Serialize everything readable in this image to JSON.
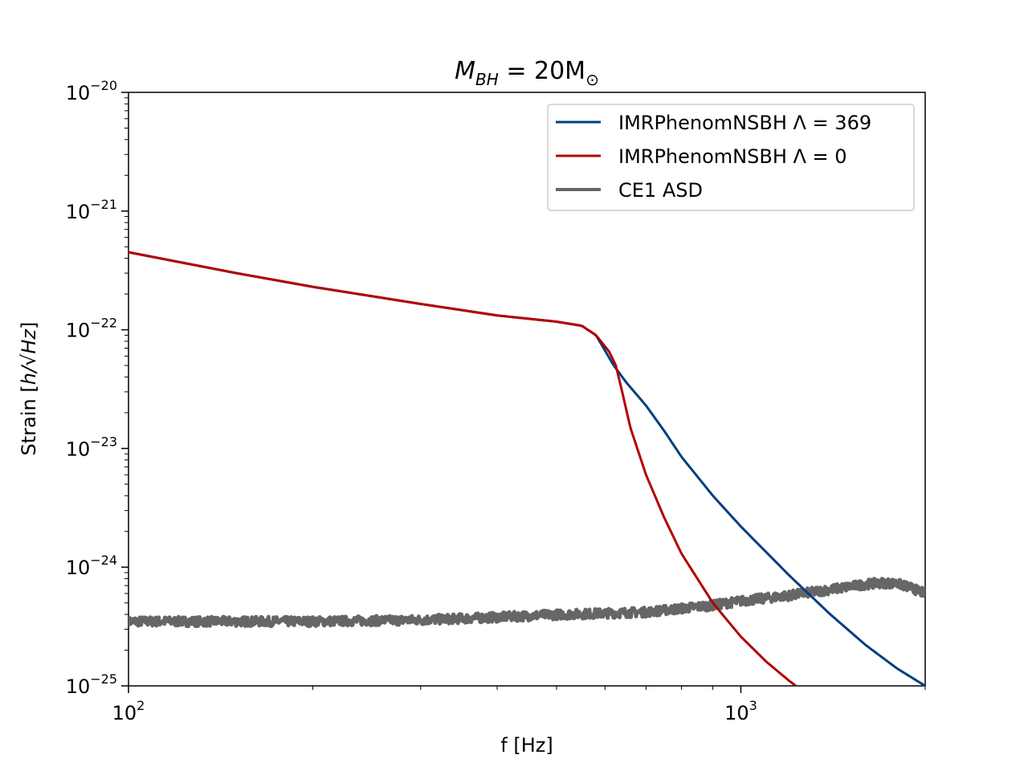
{
  "chart_data": {
    "type": "line",
    "title": "M_BH = 20M_⊙",
    "title_parts": {
      "main": "M",
      "sub": "BH",
      "mid": " = 20M",
      "sub2": "⊙"
    },
    "xlabel": "f [Hz]",
    "ylabel_prefix": "Strain  [",
    "ylabel_unit": "h/√Hz",
    "ylabel_suffix": "]",
    "xscale": "log",
    "yscale": "log",
    "xlim": [
      100,
      2000
    ],
    "ylim": [
      1e-25,
      1e-20
    ],
    "x_ticks": [
      {
        "value": 100,
        "base": "10",
        "exp": "2"
      },
      {
        "value": 1000,
        "base": "10",
        "exp": "3"
      }
    ],
    "y_ticks": [
      {
        "value": 1e-25,
        "base": "10",
        "exp": "−25"
      },
      {
        "value": 1e-24,
        "base": "10",
        "exp": "−24"
      },
      {
        "value": 1e-23,
        "base": "10",
        "exp": "−23"
      },
      {
        "value": 1e-22,
        "base": "10",
        "exp": "−22"
      },
      {
        "value": 1e-21,
        "base": "10",
        "exp": "−21"
      },
      {
        "value": 1e-20,
        "base": "10",
        "exp": "−20"
      }
    ],
    "grid": false,
    "legend_position": "top-right",
    "series": [
      {
        "name": "IMRPhenomNSBH Λ = 369",
        "color": "#003f7f",
        "points": [
          [
            100,
            4.5e-22
          ],
          [
            150,
            3e-22
          ],
          [
            200,
            2.3e-22
          ],
          [
            300,
            1.65e-22
          ],
          [
            400,
            1.32e-22
          ],
          [
            500,
            1.17e-22
          ],
          [
            550,
            1.08e-22
          ],
          [
            580,
            9e-23
          ],
          [
            620,
            5e-23
          ],
          [
            650,
            3.6e-23
          ],
          [
            700,
            2.3e-23
          ],
          [
            750,
            1.4e-23
          ],
          [
            800,
            8.5e-24
          ],
          [
            900,
            4e-24
          ],
          [
            1000,
            2.2e-24
          ],
          [
            1200,
            8.5e-25
          ],
          [
            1400,
            4e-25
          ],
          [
            1600,
            2.2e-25
          ],
          [
            1800,
            1.4e-25
          ],
          [
            2000,
            1e-25
          ]
        ]
      },
      {
        "name": "IMRPhenomNSBH Λ = 0",
        "color": "#b30000",
        "points": [
          [
            100,
            4.5e-22
          ],
          [
            150,
            3e-22
          ],
          [
            200,
            2.3e-22
          ],
          [
            300,
            1.65e-22
          ],
          [
            400,
            1.32e-22
          ],
          [
            500,
            1.17e-22
          ],
          [
            550,
            1.08e-22
          ],
          [
            580,
            9e-23
          ],
          [
            610,
            6.5e-23
          ],
          [
            625,
            5e-23
          ],
          [
            640,
            3e-23
          ],
          [
            660,
            1.5e-23
          ],
          [
            700,
            6e-24
          ],
          [
            750,
            2.6e-24
          ],
          [
            800,
            1.3e-24
          ],
          [
            900,
            5e-25
          ],
          [
            1000,
            2.6e-25
          ],
          [
            1100,
            1.6e-25
          ],
          [
            1200,
            1.1e-25
          ],
          [
            1230,
            1e-25
          ]
        ]
      },
      {
        "name": "CE1 ASD",
        "color": "#666666",
        "noisy": true,
        "points": [
          [
            100,
            3.5e-25
          ],
          [
            150,
            3.5e-25
          ],
          [
            200,
            3.5e-25
          ],
          [
            300,
            3.6e-25
          ],
          [
            400,
            3.8e-25
          ],
          [
            500,
            4e-25
          ],
          [
            600,
            4.1e-25
          ],
          [
            700,
            4.2e-25
          ],
          [
            800,
            4.5e-25
          ],
          [
            900,
            4.8e-25
          ],
          [
            1000,
            5.2e-25
          ],
          [
            1200,
            5.8e-25
          ],
          [
            1400,
            6.5e-25
          ],
          [
            1600,
            7.2e-25
          ],
          [
            1700,
            7.4e-25
          ],
          [
            1800,
            7.3e-25
          ],
          [
            1900,
            6.7e-25
          ],
          [
            2000,
            6e-25
          ]
        ]
      }
    ]
  }
}
